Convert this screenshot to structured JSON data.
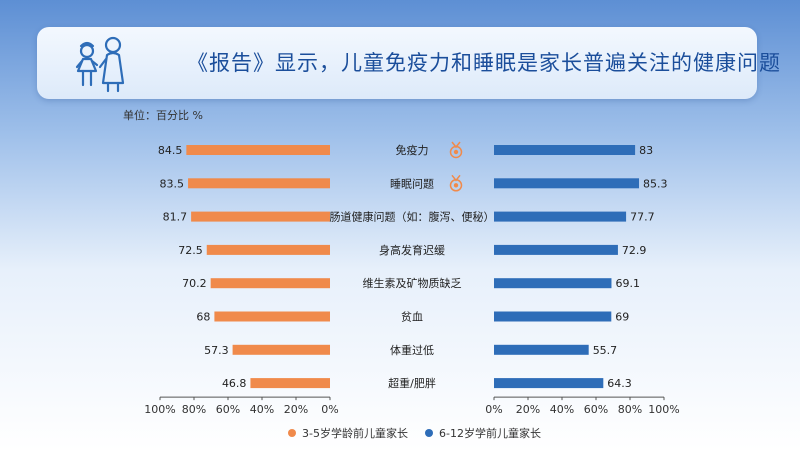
{
  "header": {
    "title": "《报告》显示，儿童免疫力和睡眠是家长普遍关注的健康问题",
    "icon": "parent-child-icon"
  },
  "unit_label": "单位：百分比 %",
  "colors": {
    "left_series": "#f08a4b",
    "right_series": "#2e6db8",
    "medal": "#f08a4b"
  },
  "legend": {
    "left": "3-5岁学龄前儿童家长",
    "right": "6-12岁学前儿童家长"
  },
  "chart_data": {
    "type": "bar",
    "orientation": "horizontal-butterfly",
    "categories": [
      "免疫力",
      "睡眠问题",
      "肠道健康问题（如：腹泻、便秘）",
      "身高发育迟缓",
      "维生素及矿物质缺乏",
      "贫血",
      "体重过低",
      "超重/肥胖"
    ],
    "series": [
      {
        "name": "3-5岁学龄前儿童家长",
        "values": [
          84.5,
          83.5,
          81.7,
          72.5,
          70.2,
          68,
          57.3,
          46.8
        ],
        "direction": "left"
      },
      {
        "name": "6-12岁学前儿童家长",
        "values": [
          83,
          85.3,
          77.7,
          72.9,
          69.1,
          69,
          55.7,
          64.3
        ],
        "direction": "right"
      }
    ],
    "left_axis_ticks": [
      "100%",
      "80%",
      "60%",
      "40%",
      "20%",
      "0%"
    ],
    "right_axis_ticks": [
      "0%",
      "20%",
      "40%",
      "60%",
      "80%",
      "100%"
    ],
    "xlim": [
      0,
      100
    ],
    "medal_rows": [
      0,
      1
    ],
    "grid": false,
    "legend_position": "bottom"
  }
}
